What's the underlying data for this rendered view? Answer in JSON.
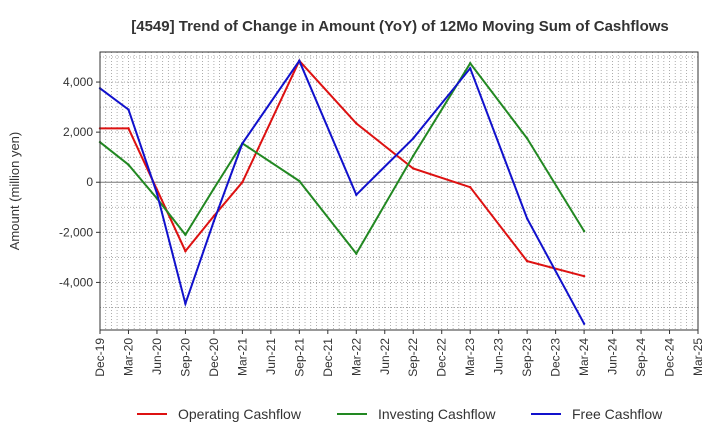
{
  "chart_data": {
    "type": "line",
    "title": "[4549]  Trend of Change in Amount (YoY) of 12Mo Moving Sum of Cashflows",
    "ylabel": "Amount (million yen)",
    "xlabel": "",
    "ylim": [
      -5900,
      5200
    ],
    "yticks": [
      4000,
      2000,
      0,
      -2000,
      -4000
    ],
    "ytick_labels": [
      "4,000",
      "2,000",
      "0",
      "-2,000",
      "-4,000"
    ],
    "categories": [
      "Dec-19",
      "Mar-20",
      "Jun-20",
      "Sep-20",
      "Dec-20",
      "Mar-21",
      "Jun-21",
      "Sep-21",
      "Dec-21",
      "Mar-22",
      "Jun-22",
      "Sep-22",
      "Dec-22",
      "Mar-23",
      "Jun-23",
      "Sep-23",
      "Dec-23",
      "Mar-24",
      "Jun-24",
      "Sep-24",
      "Dec-24",
      "Mar-25"
    ],
    "grid": true,
    "legend_position": "bottom",
    "series": [
      {
        "name": "Operating Cashflow",
        "color": "#dd1111",
        "values": [
          2150,
          2150,
          -300,
          -2750,
          -1350,
          0,
          null,
          4850,
          null,
          2350,
          null,
          550,
          null,
          -200,
          null,
          -3150,
          null,
          -3750,
          null,
          null,
          null,
          null
        ]
      },
      {
        "name": "Investing Cashflow",
        "color": "#228822",
        "values": [
          1600,
          700,
          -650,
          -2100,
          -250,
          1550,
          null,
          50,
          null,
          -2850,
          null,
          1050,
          null,
          4750,
          null,
          1750,
          null,
          -1950,
          null,
          null,
          null,
          null
        ]
      },
      {
        "name": "Free Cashflow",
        "color": "#1111cc",
        "values": [
          3750,
          2900,
          -450,
          -4850,
          -1550,
          1550,
          null,
          4850,
          null,
          -500,
          null,
          1750,
          null,
          4550,
          null,
          -1450,
          null,
          -5650,
          null,
          null,
          null,
          null
        ]
      }
    ]
  }
}
